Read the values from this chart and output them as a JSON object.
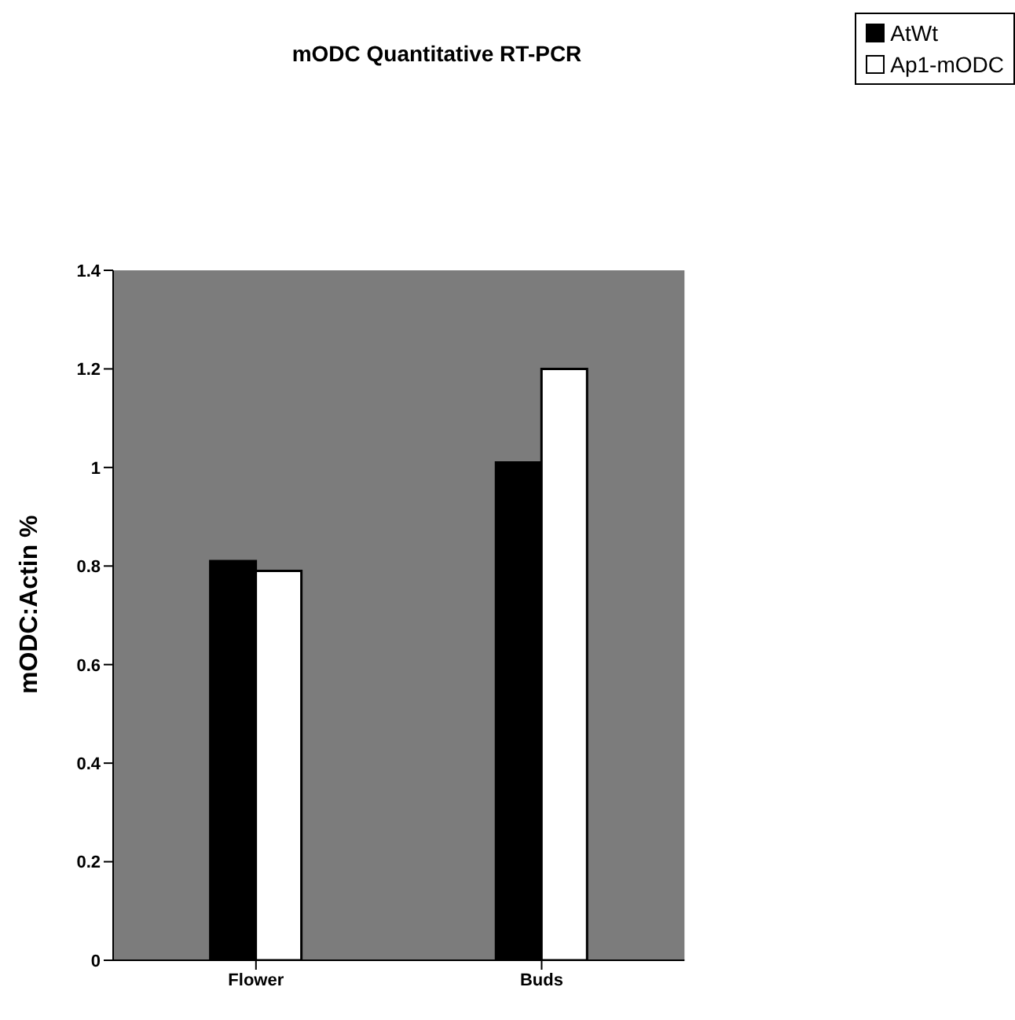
{
  "chart_data": {
    "type": "bar",
    "title": "mODC Quantitative RT-PCR",
    "ylabel": "mODC:Actin %",
    "categories": [
      "Flower",
      "Buds"
    ],
    "series": [
      {
        "name": "AtWt",
        "color": "#000000",
        "values": [
          0.81,
          1.01
        ]
      },
      {
        "name": "Ap1-mODC",
        "color": "#ffffff",
        "values": [
          0.79,
          1.2
        ]
      }
    ],
    "ylim": [
      0,
      1.4
    ],
    "yticks": [
      0,
      0.2,
      0.4,
      0.6,
      0.8,
      1,
      1.2,
      1.4
    ],
    "legend": "top right",
    "grid": false
  }
}
